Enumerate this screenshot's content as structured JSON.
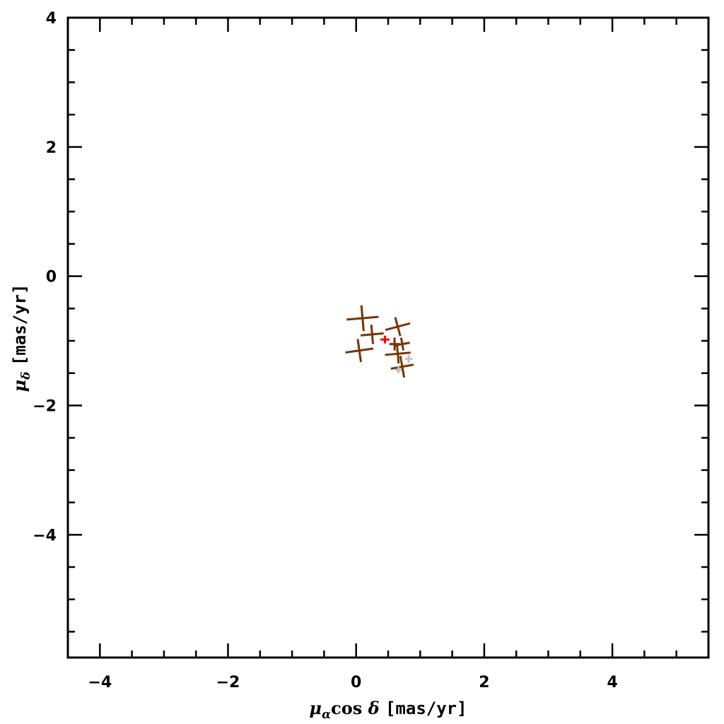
{
  "chart_data": {
    "type": "scatter",
    "title": "",
    "xlabel": {
      "mu": "μ",
      "sub": "α",
      "cos": "cos",
      "delta": "δ",
      "units": "[mas/yr]"
    },
    "ylabel": {
      "mu": "μ",
      "sub": "δ",
      "units": "[mas/yr]"
    },
    "xlim": [
      -4.5,
      5.5
    ],
    "ylim": [
      -5.9,
      4.0
    ],
    "xticks": [
      {
        "value": -4,
        "label": "−4"
      },
      {
        "value": -2,
        "label": "−2"
      },
      {
        "value": 0,
        "label": "0"
      },
      {
        "value": 2,
        "label": "2"
      },
      {
        "value": 4,
        "label": "4"
      }
    ],
    "yticks": [
      {
        "value": 4,
        "label": "4"
      },
      {
        "value": 2,
        "label": "2"
      },
      {
        "value": 0,
        "label": "0"
      },
      {
        "value": -2,
        "label": "−2"
      },
      {
        "value": -4,
        "label": "−4"
      }
    ],
    "minor_step": 0.5,
    "grid": false,
    "legend": "none",
    "colors": {
      "members": "#7a3300",
      "faint": "#c0c0c0",
      "mean": "#ff0000",
      "axes": "#000000"
    },
    "series": [
      {
        "points": [
          {
            "x": 0.1,
            "y": -0.65,
            "xerr": 0.25,
            "yerr": 0.2,
            "angle": -5
          },
          {
            "x": 0.25,
            "y": -0.9,
            "xerr": 0.18,
            "yerr": 0.15,
            "angle": -5
          },
          {
            "x": 0.05,
            "y": -1.15,
            "xerr": 0.22,
            "yerr": 0.18,
            "angle": -8
          },
          {
            "x": 0.65,
            "y": -0.78,
            "xerr": 0.2,
            "yerr": 0.15,
            "angle": -15
          },
          {
            "x": 0.72,
            "y": -1.05,
            "xerr": 0.12,
            "yerr": 0.1,
            "angle": -10
          },
          {
            "x": 0.65,
            "y": -1.2,
            "xerr": 0.2,
            "yerr": 0.15,
            "angle": -5
          },
          {
            "x": 0.72,
            "y": -1.4,
            "xerr": 0.18,
            "yerr": 0.17,
            "angle": -10
          },
          {
            "x": 0.6,
            "y": -1.05,
            "xerr": 0.08,
            "yerr": 0.1,
            "angle": 0
          }
        ],
        "color_key": "members"
      },
      {
        "points": [
          {
            "x": 0.82,
            "y": -1.28,
            "xerr": 0.06,
            "yerr": 0.06,
            "angle": 0
          },
          {
            "x": 0.66,
            "y": -1.45,
            "xerr": 0.05,
            "yerr": 0.05,
            "angle": 0
          }
        ],
        "color_key": "faint"
      },
      {
        "points": [
          {
            "x": 0.45,
            "y": -0.98,
            "xerr": 0.07,
            "yerr": 0.06,
            "angle": 0
          }
        ],
        "color_key": "mean"
      }
    ]
  }
}
